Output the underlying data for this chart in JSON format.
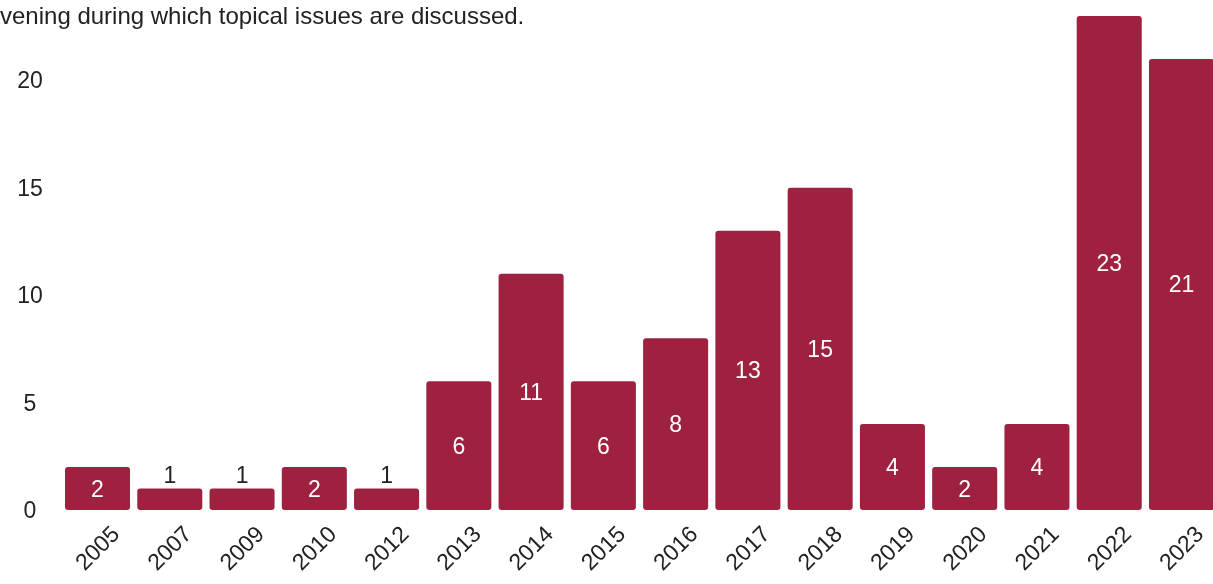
{
  "chart_data": {
    "type": "bar",
    "title": "vening during which topical issues are discussed.",
    "categories": [
      "2005",
      "2007",
      "2009",
      "2010",
      "2012",
      "2013",
      "2014",
      "2015",
      "2016",
      "2017",
      "2018",
      "2019",
      "2020",
      "2021",
      "2022",
      "2023"
    ],
    "values": [
      2,
      1,
      1,
      2,
      1,
      6,
      11,
      6,
      8,
      13,
      15,
      4,
      2,
      4,
      23,
      21
    ],
    "color": "#9e2140",
    "ylim": [
      0,
      23
    ],
    "yticks": [
      0,
      5,
      10,
      15,
      20
    ],
    "data_labels": true
  }
}
